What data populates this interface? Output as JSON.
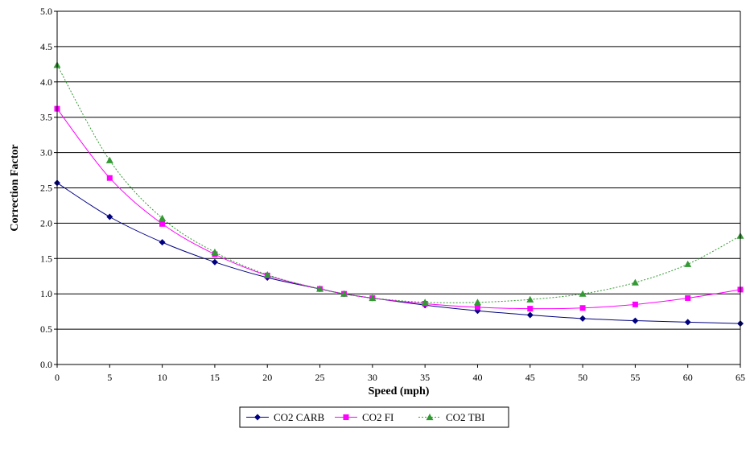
{
  "chart_data": {
    "type": "line",
    "title": "",
    "xlabel": "Speed (mph)",
    "ylabel": "Correction Factor",
    "xlim": [
      0,
      65
    ],
    "ylim": [
      0,
      5
    ],
    "x_ticks": [
      "0",
      "5",
      "10",
      "15",
      "20",
      "25",
      "30",
      "35",
      "40",
      "45",
      "50",
      "55",
      "60",
      "65"
    ],
    "y_ticks": [
      "0.0",
      "0.5",
      "1.0",
      "1.5",
      "2.0",
      "2.5",
      "3.0",
      "3.5",
      "4.0",
      "4.5",
      "5.0"
    ],
    "grid": "horizontal",
    "legend_position": "bottom",
    "series": [
      {
        "name": "CO2 CARB",
        "color": "#000080",
        "marker": "diamond",
        "dash": "solid",
        "x": [
          0,
          5,
          10,
          15,
          20,
          25,
          27.3,
          30,
          35,
          40,
          45,
          50,
          55,
          60,
          65
        ],
        "y": [
          2.57,
          2.09,
          1.73,
          1.45,
          1.23,
          1.07,
          1.0,
          0.94,
          0.84,
          0.76,
          0.7,
          0.65,
          0.62,
          0.6,
          0.58
        ]
      },
      {
        "name": "CO2 FI",
        "color": "#ff00ff",
        "marker": "square",
        "dash": "solid",
        "x": [
          0,
          5,
          10,
          15,
          20,
          25,
          27.3,
          30,
          35,
          40,
          45,
          50,
          55,
          60,
          65
        ],
        "y": [
          3.62,
          2.64,
          1.99,
          1.56,
          1.26,
          1.07,
          1.0,
          0.94,
          0.86,
          0.81,
          0.79,
          0.8,
          0.85,
          0.94,
          1.06
        ]
      },
      {
        "name": "CO2 TBI",
        "color": "#339933",
        "marker": "triangle",
        "dash": "dotted",
        "x": [
          0,
          5,
          10,
          15,
          20,
          25,
          27.3,
          30,
          35,
          40,
          45,
          50,
          55,
          60,
          65
        ],
        "y": [
          4.24,
          2.89,
          2.07,
          1.59,
          1.27,
          1.07,
          1.0,
          0.94,
          0.88,
          0.88,
          0.92,
          1.0,
          1.16,
          1.42,
          1.82
        ]
      }
    ]
  }
}
